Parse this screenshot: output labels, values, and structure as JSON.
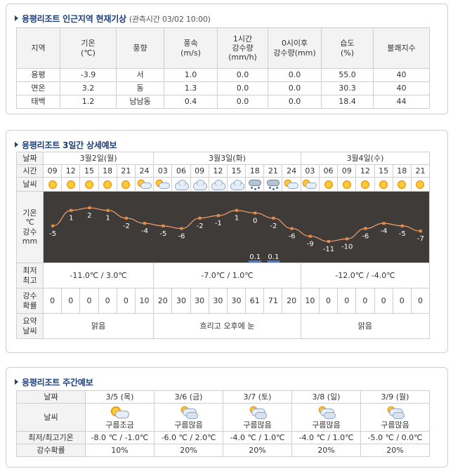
{
  "current": {
    "title": "용평리조트 인근지역 현재기상",
    "obs_time": "(관측시간 03/02 10:00)",
    "headers": [
      "지역",
      "기온\n(℃)",
      "풍향",
      "풍속\n(m/s)",
      "1시간\n강수량\n(mm/h)",
      "0시이후\n강수량(mm)",
      "습도\n(%)",
      "불쾌지수"
    ],
    "rows": [
      [
        "용평",
        "-3.9",
        "서",
        "1.0",
        "0.0",
        "0.0",
        "55.0",
        "40"
      ],
      [
        "면온",
        "3.2",
        "동",
        "1.3",
        "0.0",
        "0.0",
        "30.3",
        "40"
      ],
      [
        "태백",
        "1.2",
        "남남동",
        "0.4",
        "0.0",
        "0.0",
        "18.4",
        "44"
      ]
    ]
  },
  "detail": {
    "title": "용평리조트 3일간 상세예보",
    "labels": {
      "date": "날짜",
      "time": "시간",
      "weather": "날씨",
      "temp_label": "기온\n℃\n강수\nmm",
      "minmax": "최저\n최고",
      "pop": "강수\n확률",
      "summary": "요약\n날씨"
    },
    "days": [
      {
        "date": "3월2일(월)",
        "minmax": "-11.0℃ / 3.0℃",
        "summary": "맑음"
      },
      {
        "date": "3월3일(화)",
        "minmax": "-7.0℃ / 1.0℃",
        "summary": "흐리고 오후에 눈"
      },
      {
        "date": "3월4일(수)",
        "minmax": "-12.0℃ / -4.0℃",
        "summary": "맑음"
      }
    ],
    "times": [
      "09",
      "12",
      "15",
      "18",
      "21",
      "24",
      "03",
      "06",
      "09",
      "12",
      "15",
      "18",
      "21",
      "24",
      "03",
      "06",
      "09",
      "12",
      "15",
      "18",
      "21"
    ],
    "weather_icons": [
      "sun-icon",
      "sun-icon",
      "sun-icon",
      "sun-icon",
      "sun-icon",
      "sun-cloud-icon",
      "sun-cloud-icon",
      "cloud-icon",
      "cloud-icon",
      "cloud-icon",
      "cloud-icon",
      "snow-icon",
      "snow-icon",
      "sun-cloud-icon",
      "sun-cloud-icon",
      "sun-icon",
      "sun-icon",
      "sun-icon",
      "sun-icon",
      "sun-icon",
      "sun-icon"
    ],
    "pop": [
      "0",
      "0",
      "0",
      "0",
      "0",
      "10",
      "20",
      "30",
      "30",
      "30",
      "30",
      "61",
      "71",
      "20",
      "10",
      "0",
      "0",
      "0",
      "0",
      "0",
      "0"
    ],
    "colors": {
      "graph_bg": "#3f3b38",
      "line": "#f0a070",
      "point": "#e98d40",
      "label": "#ffffff",
      "precip": "#3f78d8"
    }
  },
  "chart_data": {
    "type": "line",
    "x": [
      "09",
      "12",
      "15",
      "18",
      "21",
      "24",
      "03",
      "06",
      "09",
      "12",
      "15",
      "18",
      "21",
      "24",
      "03",
      "06",
      "09",
      "12",
      "15",
      "18",
      "21"
    ],
    "series": [
      {
        "values": [
          -5,
          1,
          2,
          1,
          -2,
          -4,
          -5,
          -6,
          -2,
          -1,
          1,
          0,
          -2,
          -6,
          -9,
          -11,
          -10,
          -6,
          -4,
          -5,
          -7
        ]
      }
    ],
    "precip": [
      null,
      null,
      null,
      null,
      null,
      null,
      null,
      null,
      null,
      null,
      null,
      "0.1",
      "0.1",
      null,
      null,
      null,
      null,
      null,
      null,
      null,
      null
    ],
    "ylim": [
      -14,
      5
    ],
    "grid": false
  },
  "weekly": {
    "title": "용평리조트 주간예보",
    "labels": {
      "date": "날짜",
      "weather": "날씨",
      "minmax": "최저/최고기온",
      "pop": "강수확률"
    },
    "days": [
      {
        "date": "3/5 (목)",
        "icon": "sun-cloud-icon",
        "weather": "구름조금",
        "minmax": "-8.0 ℃ / -1.0℃",
        "pop": "10%"
      },
      {
        "date": "3/6 (금)",
        "icon": "cloudy-icon",
        "weather": "구름많음",
        "minmax": "-6.0 ℃ / 2.0℃",
        "pop": "20%"
      },
      {
        "date": "3/7 (토)",
        "icon": "cloudy-icon",
        "weather": "구름많음",
        "minmax": "-4.0 ℃ / 1.0℃",
        "pop": "20%"
      },
      {
        "date": "3/8 (일)",
        "icon": "cloudy-icon",
        "weather": "구름많음",
        "minmax": "-4.0 ℃ / 1.0℃",
        "pop": "20%"
      },
      {
        "date": "3/9 (월)",
        "icon": "cloudy-icon",
        "weather": "구름많음",
        "minmax": "-5.0 ℃ / 0.0℃",
        "pop": "20%"
      }
    ]
  }
}
